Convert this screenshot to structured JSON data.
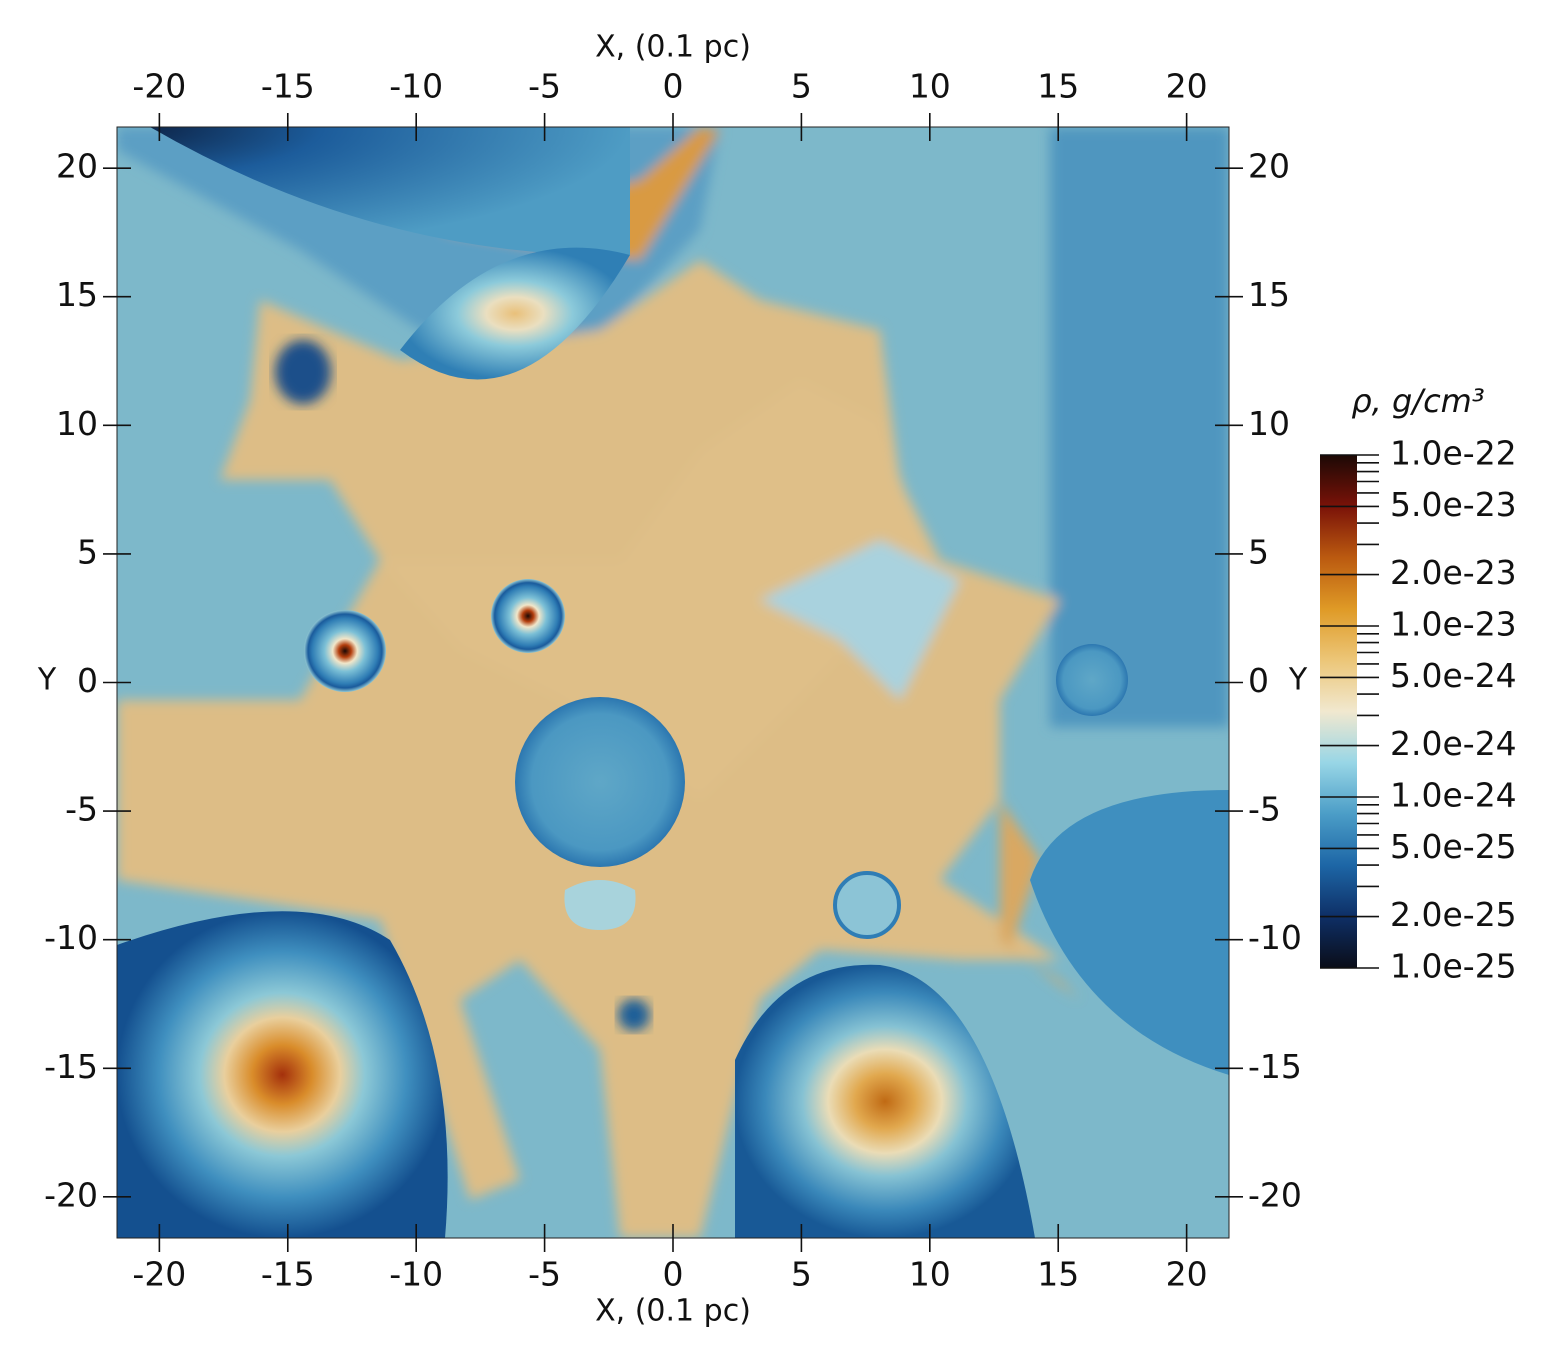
{
  "chart_data": {
    "type": "heatmap",
    "xlabel": "X, (0.1 pc)",
    "ylabel": "Y",
    "xlim": [
      -21.65,
      21.65
    ],
    "ylim": [
      -21.6,
      21.6
    ],
    "xticks": [
      -20,
      -15,
      -10,
      -5,
      0,
      5,
      10,
      15,
      20
    ],
    "yticks": [
      -20,
      -15,
      -10,
      -5,
      0,
      5,
      10,
      15,
      20
    ],
    "colorbar": {
      "title": "ρ, g/cm³",
      "log": true,
      "clim": [
        1e-25,
        1e-22
      ],
      "ticks": [
        {
          "value": 1e-22,
          "label": "1.0e-22"
        },
        {
          "value": 5e-23,
          "label": "5.0e-23"
        },
        {
          "value": 2e-23,
          "label": "2.0e-23"
        },
        {
          "value": 1e-23,
          "label": "1.0e-23"
        },
        {
          "value": 5e-24,
          "label": "5.0e-24"
        },
        {
          "value": 2e-24,
          "label": "2.0e-24"
        },
        {
          "value": 1e-24,
          "label": "1.0e-24"
        },
        {
          "value": 5e-25,
          "label": "5.0e-25"
        },
        {
          "value": 2e-25,
          "label": "2.0e-25"
        },
        {
          "value": 1e-25,
          "label": "1.0e-25"
        }
      ],
      "minor_ticks": [
        9e-23,
        8e-23,
        7e-23,
        6e-23,
        4e-23,
        3e-23,
        9e-24,
        8e-24,
        7e-24,
        6e-24,
        4e-24,
        3e-24,
        9e-25,
        8e-25,
        7e-25,
        6e-25,
        4e-25,
        3e-25
      ],
      "colormap": [
        "#0a0d18",
        "#0e2f66",
        "#1d66a6",
        "#4b9dc7",
        "#98d6e6",
        "#f1e8cf",
        "#ecc678",
        "#df9a26",
        "#bb5a10",
        "#7a1208",
        "#1c0905"
      ]
    }
  }
}
